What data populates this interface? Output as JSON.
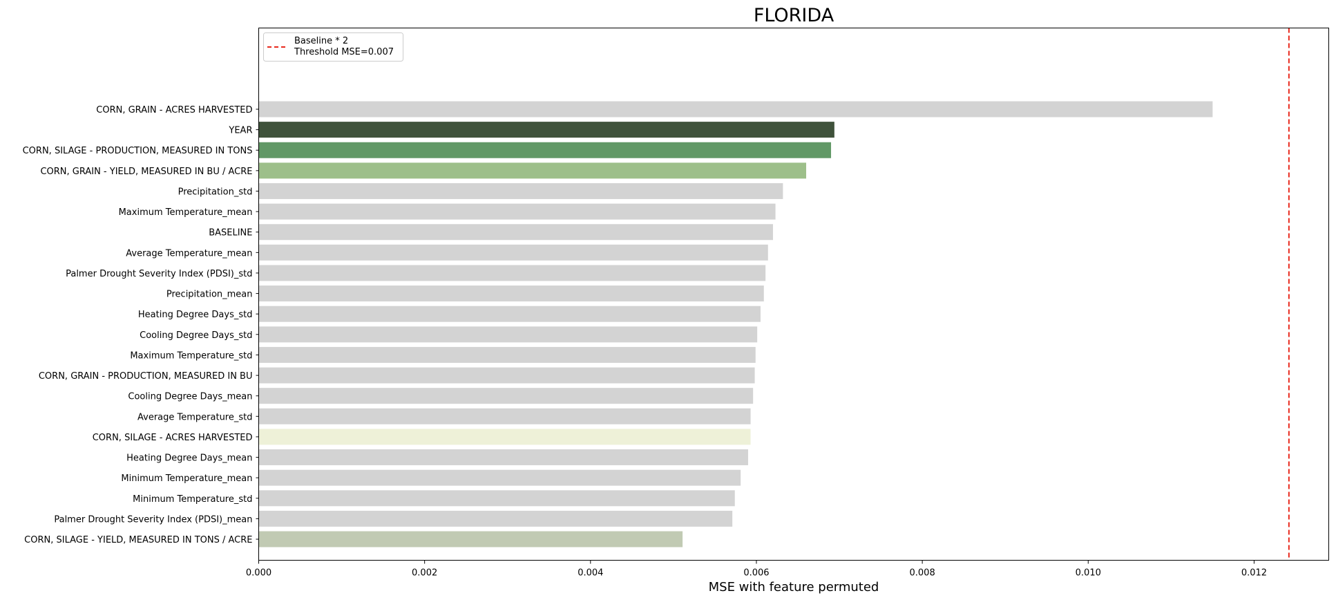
{
  "chart_data": {
    "type": "bar",
    "orientation": "horizontal",
    "title": "FLORIDA",
    "xlabel": "MSE with feature permuted",
    "ylabel": "",
    "xlim": [
      0,
      0.0129
    ],
    "xticks": [
      0.0,
      0.002,
      0.004,
      0.006,
      0.008,
      0.01,
      0.012
    ],
    "xtick_labels": [
      "0.000",
      "0.002",
      "0.004",
      "0.006",
      "0.008",
      "0.010",
      "0.012"
    ],
    "grid": false,
    "legend_position": "top-left",
    "legend_entries": [
      "Baseline * 2",
      "Threshold MSE=0.007"
    ],
    "threshold_line": {
      "value": 0.01242,
      "color": "#e8281c",
      "style": "dashed"
    },
    "categories": [
      "CORN, GRAIN - ACRES HARVESTED",
      "YEAR",
      "CORN, SILAGE - PRODUCTION, MEASURED IN TONS",
      "CORN, GRAIN - YIELD, MEASURED IN BU / ACRE",
      "Precipitation_std",
      "Maximum Temperature_mean",
      "BASELINE",
      "Average Temperature_mean",
      "Palmer Drought Severity Index (PDSI)_std",
      "Precipitation_mean",
      "Heating Degree Days_std",
      "Cooling Degree Days_std",
      "Maximum Temperature_std",
      "CORN, GRAIN - PRODUCTION, MEASURED IN BU",
      "Cooling Degree Days_mean",
      "Average Temperature_std",
      "CORN, SILAGE - ACRES HARVESTED",
      "Heating Degree Days_mean",
      "Minimum Temperature_mean",
      "Minimum Temperature_std",
      "Palmer Drought Severity Index (PDSI)_mean",
      "CORN, SILAGE - YIELD, MEASURED IN TONS / ACRE"
    ],
    "values": [
      0.0115,
      0.00694,
      0.0069,
      0.0066,
      0.00632,
      0.00623,
      0.0062,
      0.00614,
      0.00611,
      0.00609,
      0.00605,
      0.00601,
      0.00599,
      0.00598,
      0.00596,
      0.00593,
      0.00593,
      0.0059,
      0.00581,
      0.00574,
      0.00571,
      0.00511
    ],
    "colors": [
      "#d3d3d3",
      "#3f523b",
      "#619866",
      "#9dbf8a",
      "#d3d3d3",
      "#d3d3d3",
      "#d3d3d3",
      "#d3d3d3",
      "#d3d3d3",
      "#d3d3d3",
      "#d3d3d3",
      "#d3d3d3",
      "#d3d3d3",
      "#d3d3d3",
      "#d3d3d3",
      "#d3d3d3",
      "#eef1d8",
      "#d3d3d3",
      "#d3d3d3",
      "#d3d3d3",
      "#d3d3d3",
      "#c1cab3"
    ]
  }
}
